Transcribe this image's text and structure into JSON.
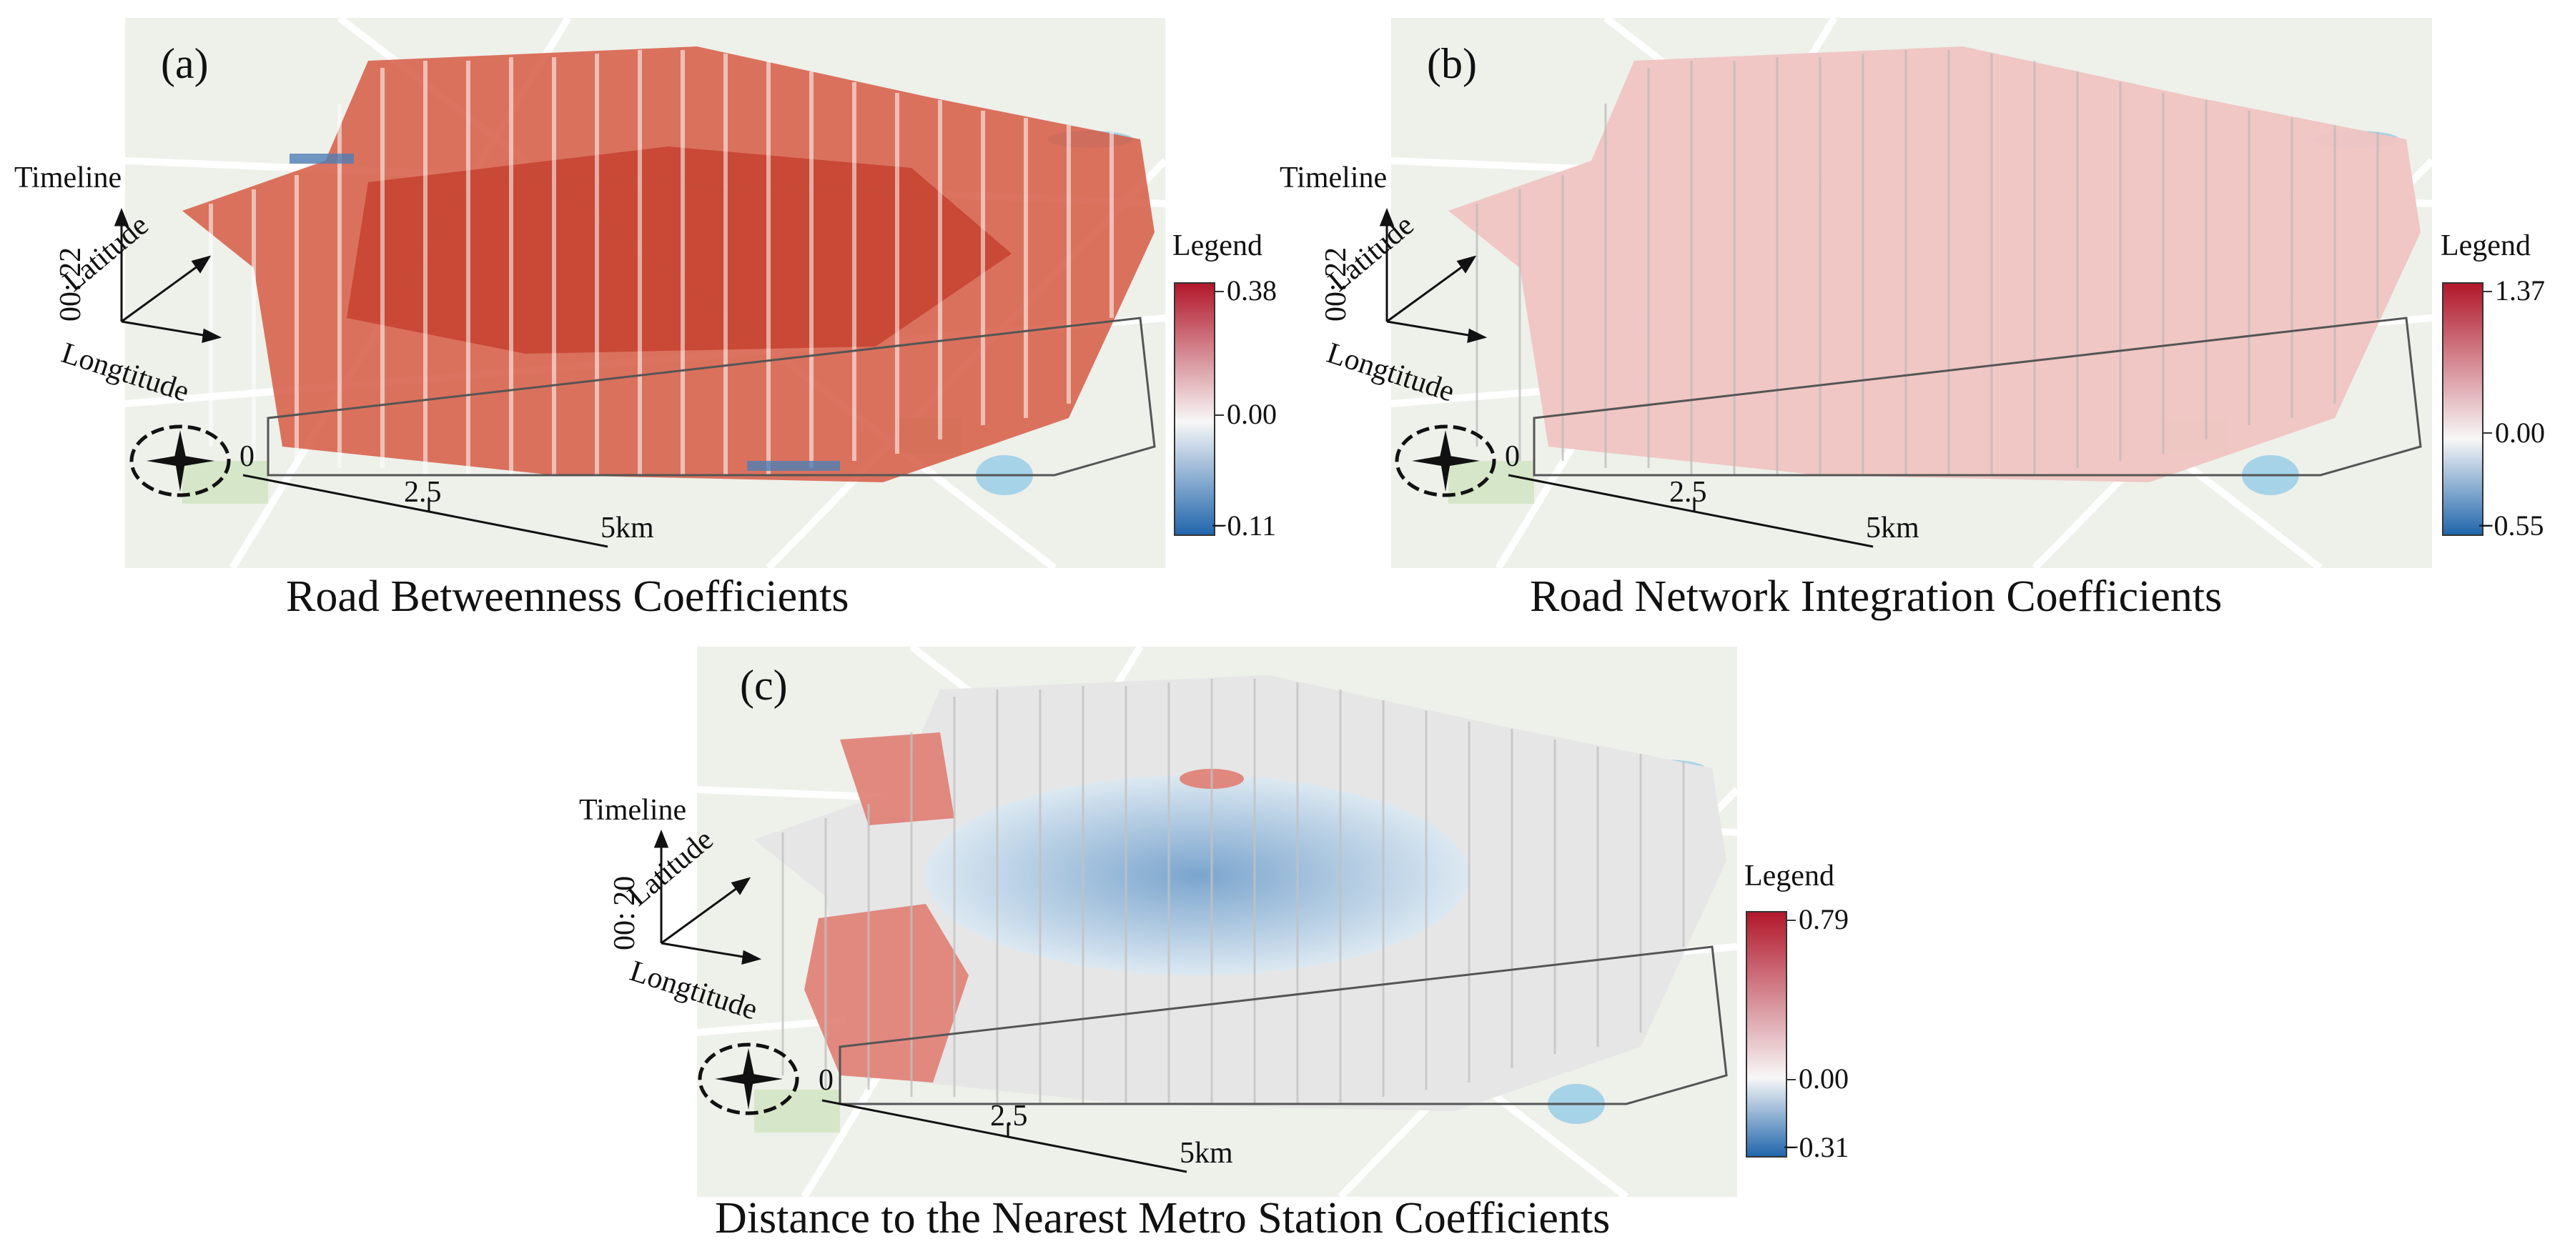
{
  "panels": {
    "a": {
      "label": "(a)",
      "timeline": "Timeline",
      "time_range": "00: 22",
      "latitude": "Latitude",
      "longitude": "Longtitude",
      "scale": [
        "0",
        "2.5",
        "5km"
      ],
      "legend_title": "Legend",
      "legend_max": "0.38",
      "legend_mid": "0.00",
      "legend_min": "−0.11",
      "caption": "Road Betweenness Coefficients"
    },
    "b": {
      "label": "(b)",
      "timeline": "Timeline",
      "time_range": "00: 22",
      "latitude": "Latitude",
      "longitude": "Longtitude",
      "scale": [
        "0",
        "2.5",
        "5km"
      ],
      "legend_title": "Legend",
      "legend_max": "1.37",
      "legend_mid": "0.00",
      "legend_min": "−0.55",
      "caption": "Road Network Integration Coefficients"
    },
    "c": {
      "label": "(c)",
      "timeline": "Timeline",
      "time_range": "00: 20",
      "latitude": "Latitude",
      "longitude": "Longtitude",
      "scale": [
        "0",
        "2.5",
        "5km"
      ],
      "legend_title": "Legend",
      "legend_max": "0.79",
      "legend_mid": "0.00",
      "legend_min": "−0.31",
      "caption": "Distance to the Nearest Metro Station Coefficients"
    }
  },
  "colors": {
    "diverging_high": "#b2182b",
    "diverging_mid": "#f7f7f7",
    "diverging_low": "#2166ac",
    "basemap": "#eef0ea",
    "road": "#ffffff",
    "water": "#a6d3e8",
    "park": "#d5e7c8"
  }
}
